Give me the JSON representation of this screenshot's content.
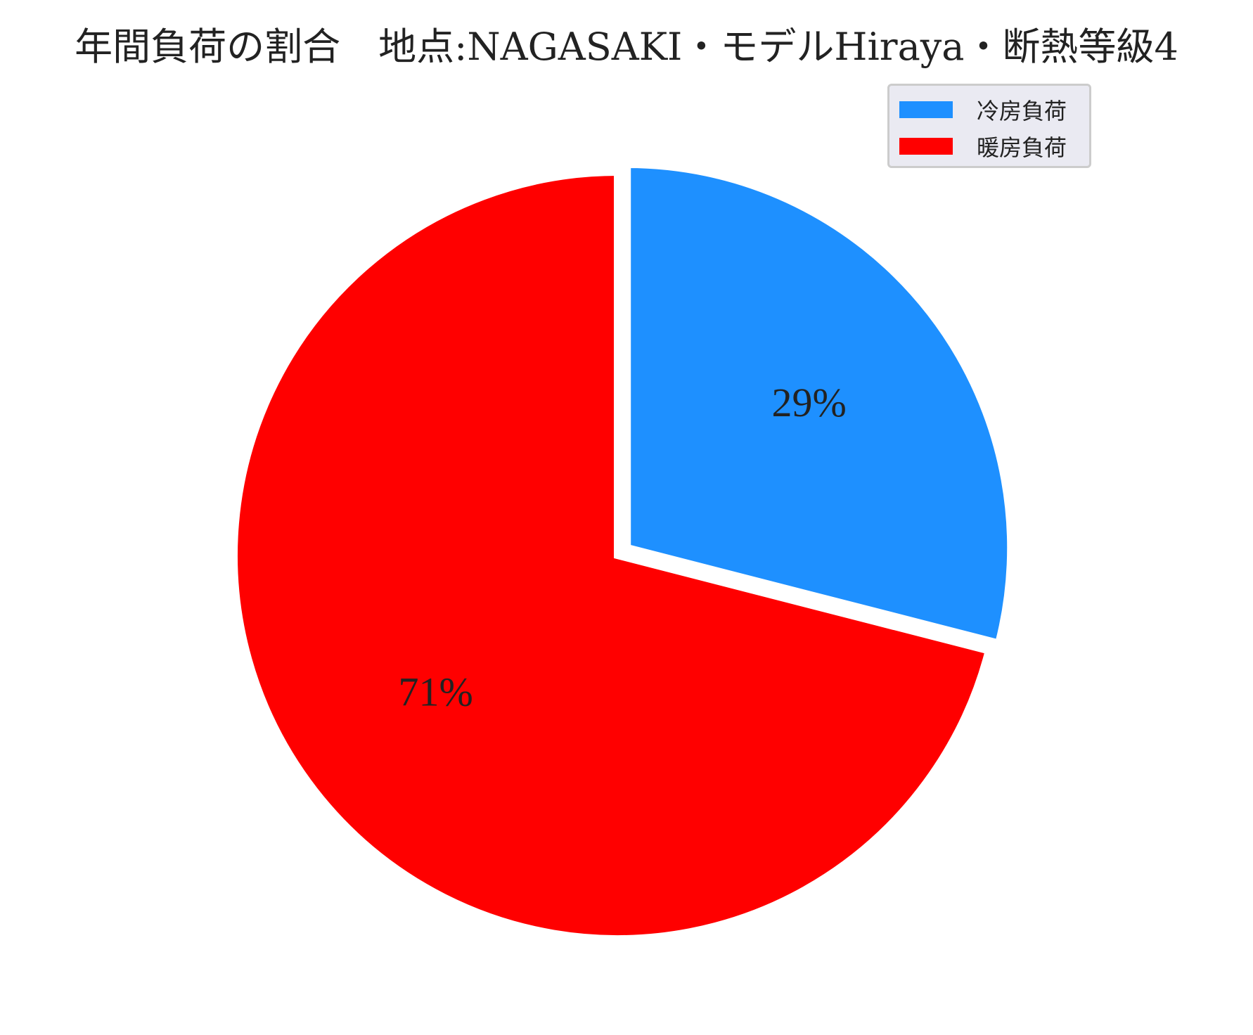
{
  "chart_data": {
    "type": "pie",
    "title": "年間負荷の割合　地点:NAGASAKI・モデルHiraya・断熱等級4",
    "labels": [
      "冷房負荷",
      "暖房負荷"
    ],
    "values": [
      29,
      71
    ],
    "value_labels": [
      "29%",
      "71%"
    ],
    "colors": [
      "#1e90ff",
      "#ff0000"
    ],
    "exploded": [
      "冷房負荷"
    ],
    "start_angle_deg": 90,
    "direction": "clockwise",
    "legend": "top-right"
  }
}
